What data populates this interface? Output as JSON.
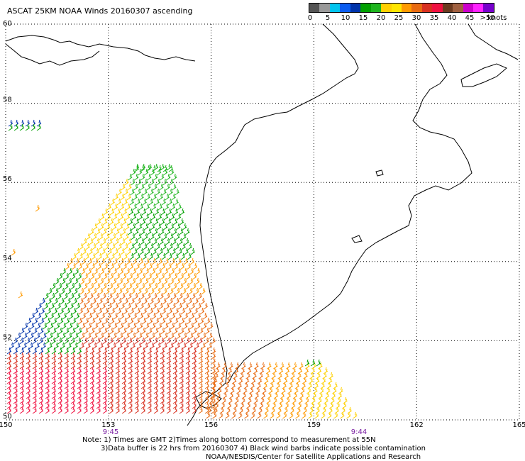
{
  "title": "ASCAT 25KM NOAA Winds 20160307 ascending",
  "colorbar": {
    "colors": [
      "#555555",
      "#999999",
      "#00c4ee",
      "#0b5cf0",
      "#0033aa",
      "#00a000",
      "#1eb41e",
      "#ffd000",
      "#ffe600",
      "#ff9a00",
      "#e86a10",
      "#d83020",
      "#f01040",
      "#6b3a1f",
      "#a06040",
      "#cc00cc",
      "#ff22ff",
      "#7700cc"
    ],
    "ticks": [
      "0",
      "5",
      "10",
      "15",
      "20",
      "25",
      "30",
      "35",
      "40",
      "45",
      ">50"
    ],
    "unit": "knots"
  },
  "map": {
    "lat_labels": [
      "60",
      "58",
      "56",
      "54",
      "52",
      "50"
    ],
    "lon_labels": [
      "150",
      "153",
      "156",
      "159",
      "162",
      "165"
    ],
    "pass_times": [
      "9:45",
      "9:44"
    ]
  },
  "notes": {
    "line1": "Note: 1) Times are GMT 2)Times along bottom correspond to measurement at 55N",
    "line2": "3)Data buffer is 22 hrs from 20160307 4) Black wind barbs indicate possible contamination",
    "line3": "NOAA/NESDIS/Center for Satellite Applications and Research"
  }
}
